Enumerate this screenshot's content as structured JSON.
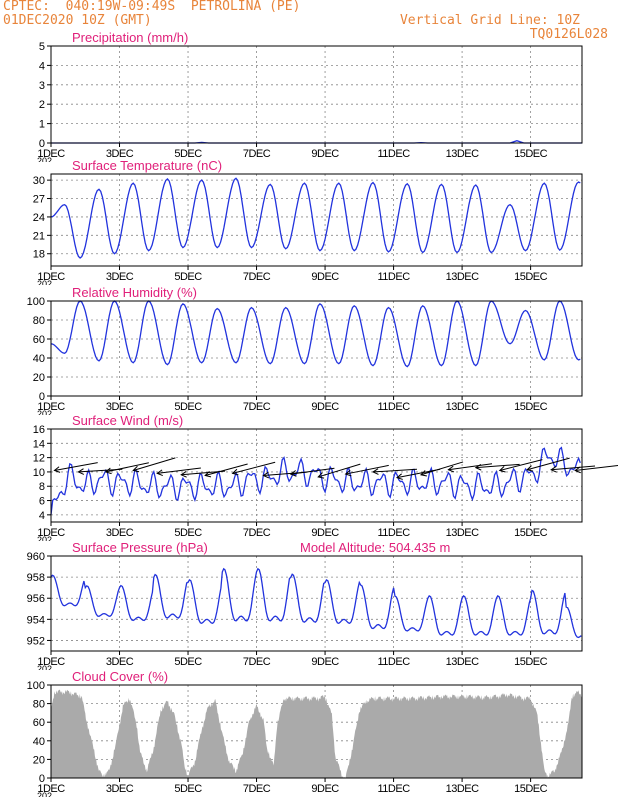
{
  "header": {
    "line1": "CPTEC:  040:19W-09:49S  PETROLINA (PE)",
    "line2": "01DEC2020 10Z (GMT)",
    "grid_note": "Vertical Grid Line: 10Z",
    "run_code": "TQ0126L028"
  },
  "colors": {
    "header": "#e8843a",
    "panel_title": "#e0207a",
    "series": "#2233dd",
    "cloud": "#aaaaaa",
    "arrow": "#000000"
  },
  "x_ticks": [
    "1DEC",
    "3DEC",
    "5DEC",
    "7DEC",
    "9DEC",
    "11DEC",
    "13DEC",
    "15DEC"
  ],
  "x_clip_label": "202",
  "chart_data": [
    {
      "id": "precip",
      "type": "line",
      "title": "Precipitation (mm/h)",
      "ylim": [
        0,
        5
      ],
      "yticks": [
        0,
        1,
        2,
        3,
        4,
        5
      ],
      "xlim": [
        0,
        15.5
      ],
      "x_unit": "days since 01DEC2020 10Z",
      "grid": "dotted",
      "series": [
        {
          "values": [
            [
              0,
              0
            ],
            [
              4.2,
              0
            ],
            [
              4.4,
              0.03
            ],
            [
              4.6,
              0
            ],
            [
              10.6,
              0
            ],
            [
              10.8,
              0.02
            ],
            [
              11,
              0
            ],
            [
              13.4,
              0
            ],
            [
              13.6,
              0.12
            ],
            [
              13.8,
              0
            ],
            [
              15.5,
              0
            ]
          ]
        }
      ]
    },
    {
      "id": "temp",
      "type": "line",
      "title": "Surface Temperature (nC)",
      "ylim": [
        16,
        31
      ],
      "yticks": [
        18,
        21,
        24,
        27,
        30
      ],
      "xlim": [
        0,
        15.5
      ],
      "grid": "dotted",
      "diurnal": {
        "phase_max": 0.4,
        "phase_min": 0.85
      },
      "max": [
        26,
        28.5,
        29.5,
        30.2,
        30,
        30.3,
        29.3,
        29.5,
        29.5,
        29.6,
        29.4,
        29.3,
        29.2,
        26,
        29.5,
        29.7
      ],
      "min": [
        17.3,
        18,
        18.5,
        19,
        19,
        19,
        18.8,
        18.5,
        18.5,
        18.3,
        18.2,
        18.2,
        18.2,
        18.5,
        18.6,
        24.5
      ]
    },
    {
      "id": "rh",
      "type": "line",
      "title": "Relative Humidity (%)",
      "ylim": [
        0,
        100
      ],
      "yticks": [
        0,
        20,
        40,
        60,
        80,
        100
      ],
      "xlim": [
        0,
        15.5
      ],
      "grid": "dotted",
      "diurnal": {
        "phase_max": 0.85,
        "phase_min": 0.4
      },
      "max": [
        100,
        100,
        100,
        97,
        92,
        93,
        93,
        97,
        95,
        93,
        95,
        100,
        100,
        90,
        100,
        58
      ],
      "min": [
        45,
        37,
        35,
        33,
        35,
        35,
        34,
        34,
        34,
        32,
        31,
        32,
        32,
        55,
        38,
        38
      ]
    },
    {
      "id": "wind",
      "type": "line",
      "title": "Surface Wind (m/s)",
      "ylim": [
        3,
        16
      ],
      "yticks": [
        4,
        6,
        8,
        10,
        12,
        14,
        16
      ],
      "xlim": [
        0,
        15.5
      ],
      "grid": "dotted",
      "base": [
        4,
        9.5,
        8,
        9,
        8.5,
        8.5,
        8,
        8,
        8,
        8,
        8,
        8,
        9,
        9,
        10,
        10,
        9.5,
        9,
        8.5,
        8.5,
        8.5,
        8.5,
        8.5,
        8.5,
        8.5,
        8,
        8,
        8,
        9,
        9.5,
        12.5,
        11,
        10
      ],
      "arrows_note": "wind barbs along the series",
      "arrows": [
        [
          0.1,
          10.2
        ],
        [
          0.8,
          10
        ],
        [
          1.6,
          10
        ],
        [
          2.4,
          10.2
        ],
        [
          3.1,
          9.8
        ],
        [
          3.8,
          9.6
        ],
        [
          4.5,
          9.5
        ],
        [
          5.3,
          9.8
        ],
        [
          6.2,
          9.5
        ],
        [
          7.0,
          9.7
        ],
        [
          7.8,
          9.3
        ],
        [
          8.6,
          9.7
        ],
        [
          9.4,
          10
        ],
        [
          10.1,
          9.2
        ],
        [
          10.8,
          9.6
        ],
        [
          11.6,
          10.3
        ],
        [
          12.4,
          10.6
        ],
        [
          13.1,
          10.2
        ],
        [
          13.9,
          10.3
        ],
        [
          14.6,
          10.3
        ],
        [
          15.3,
          10.2
        ]
      ]
    },
    {
      "id": "pressure",
      "type": "line",
      "title": "Surface Pressure (hPa)",
      "annotation": "Model Altitude: 504.435 m",
      "ylim": [
        951,
        960
      ],
      "yticks": [
        952,
        954,
        956,
        958,
        960
      ],
      "xlim": [
        0,
        15.5
      ],
      "grid": "dotted",
      "semidiurnal": true,
      "peaks": [
        958,
        957,
        957,
        958,
        957.5,
        958.5,
        958.5,
        958,
        957.5,
        957,
        956,
        956,
        956,
        956,
        956.5,
        955
      ],
      "troughs": [
        954.5,
        953.5,
        953,
        953,
        952.5,
        952.5,
        952.5,
        952.5,
        952.5,
        952,
        952,
        951.5,
        951.5,
        951.5,
        951.5,
        951.5
      ]
    },
    {
      "id": "cloud",
      "type": "area",
      "title": "Cloud Cover (%)",
      "ylim": [
        0,
        100
      ],
      "yticks": [
        0,
        20,
        40,
        60,
        80,
        100
      ],
      "xlim": [
        0,
        15.5
      ],
      "grid": "dotted",
      "values": [
        [
          0,
          75
        ],
        [
          0.1,
          95
        ],
        [
          0.5,
          95
        ],
        [
          0.9,
          90
        ],
        [
          1.0,
          70
        ],
        [
          1.2,
          40
        ],
        [
          1.4,
          10
        ],
        [
          1.5,
          5
        ],
        [
          1.7,
          10
        ],
        [
          1.9,
          40
        ],
        [
          2.1,
          80
        ],
        [
          2.3,
          88
        ],
        [
          2.5,
          60
        ],
        [
          2.6,
          30
        ],
        [
          2.8,
          10
        ],
        [
          3.0,
          35
        ],
        [
          3.2,
          75
        ],
        [
          3.4,
          85
        ],
        [
          3.6,
          70
        ],
        [
          3.8,
          40
        ],
        [
          3.9,
          15
        ],
        [
          4.0,
          5
        ],
        [
          4.2,
          20
        ],
        [
          4.4,
          55
        ],
        [
          4.6,
          80
        ],
        [
          4.8,
          85
        ],
        [
          5.0,
          50
        ],
        [
          5.2,
          20
        ],
        [
          5.4,
          10
        ],
        [
          5.6,
          30
        ],
        [
          5.8,
          65
        ],
        [
          6.0,
          80
        ],
        [
          6.2,
          65
        ],
        [
          6.3,
          35
        ],
        [
          6.5,
          15
        ],
        [
          6.6,
          60
        ],
        [
          6.8,
          88
        ],
        [
          7.0,
          88
        ],
        [
          7.4,
          88
        ],
        [
          7.8,
          88
        ],
        [
          8.0,
          90
        ],
        [
          8.2,
          70
        ],
        [
          8.3,
          25
        ],
        [
          8.5,
          5
        ],
        [
          8.6,
          2
        ],
        [
          8.8,
          35
        ],
        [
          9.0,
          75
        ],
        [
          9.2,
          85
        ],
        [
          9.4,
          88
        ],
        [
          9.8,
          88
        ],
        [
          10.2,
          88
        ],
        [
          10.6,
          88
        ],
        [
          11.0,
          89
        ],
        [
          11.4,
          90
        ],
        [
          11.8,
          90
        ],
        [
          12.2,
          90
        ],
        [
          12.6,
          89
        ],
        [
          13.0,
          90
        ],
        [
          13.3,
          92
        ],
        [
          13.6,
          90
        ],
        [
          13.8,
          88
        ],
        [
          14.0,
          88
        ],
        [
          14.2,
          70
        ],
        [
          14.3,
          40
        ],
        [
          14.4,
          10
        ],
        [
          14.5,
          5
        ],
        [
          14.7,
          10
        ],
        [
          14.9,
          30
        ],
        [
          15.0,
          45
        ],
        [
          15.1,
          60
        ],
        [
          15.2,
          90
        ],
        [
          15.4,
          95
        ],
        [
          15.5,
          92
        ]
      ]
    }
  ]
}
